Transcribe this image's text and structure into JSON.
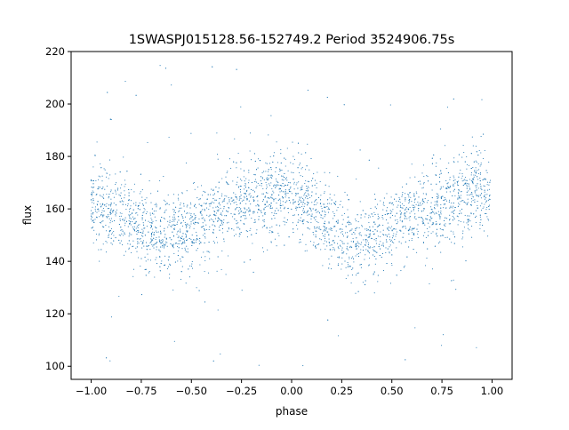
{
  "chart_data": {
    "type": "scatter",
    "title": "1SWASPJ015128.56-152749.2 Period 3524906.75s",
    "xlabel": "phase",
    "ylabel": "flux",
    "xlim": [
      -1.1,
      1.1
    ],
    "ylim": [
      95,
      220
    ],
    "xticks": [
      "−1.00",
      "−0.75",
      "−0.50",
      "−0.25",
      "0.00",
      "0.25",
      "0.50",
      "0.75",
      "1.00"
    ],
    "yticks": [
      "100",
      "120",
      "140",
      "160",
      "180",
      "200",
      "220"
    ],
    "grid": false,
    "legend": "none",
    "marker_color": "#1f77b4",
    "series": [
      {
        "profile_phase": [
          -1.0,
          -0.9,
          -0.8,
          -0.7,
          -0.6,
          -0.5,
          -0.4,
          -0.3,
          -0.2,
          -0.1,
          0.0,
          0.1,
          0.2,
          0.3,
          0.4,
          0.5,
          0.6,
          0.7,
          0.8,
          0.9,
          1.0
        ],
        "profile_flux": [
          163,
          160,
          155,
          150,
          150,
          153,
          158,
          160,
          163,
          166,
          167,
          160,
          153,
          148,
          149,
          153,
          158,
          160,
          163,
          167,
          167
        ],
        "scatter_sigma": 9,
        "n_points": 3600
      }
    ]
  }
}
